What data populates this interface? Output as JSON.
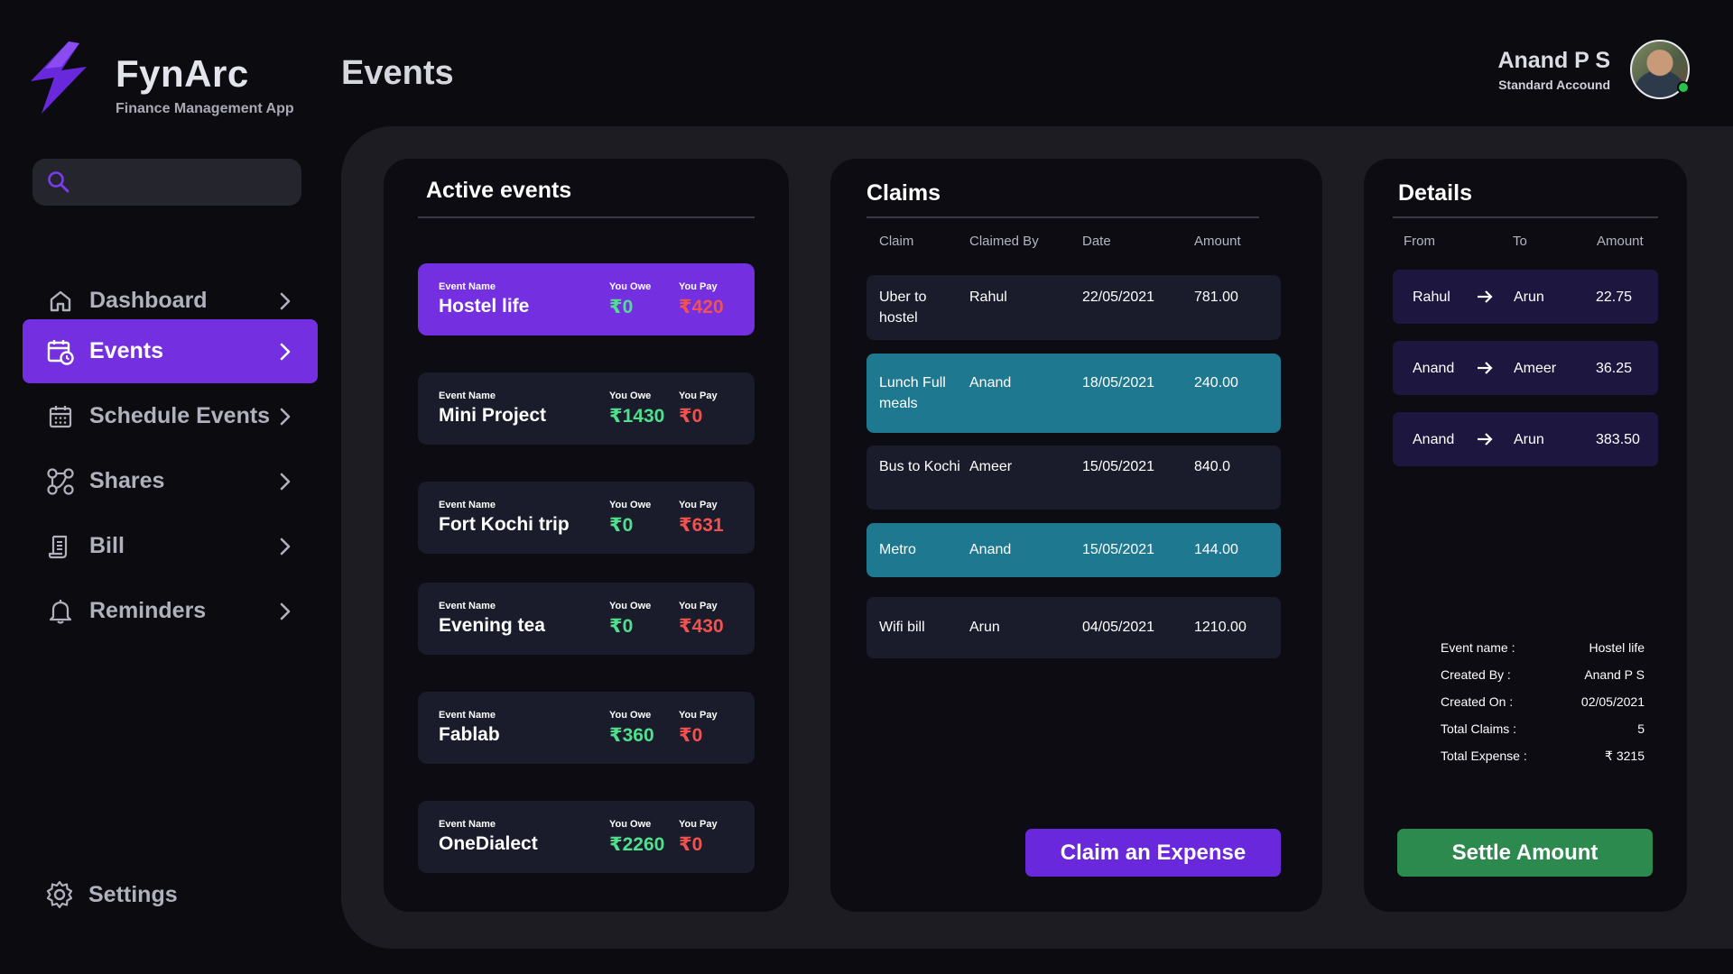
{
  "brand": {
    "name": "FynArc",
    "subtitle": "Finance Management App"
  },
  "header": {
    "title": "Events"
  },
  "user": {
    "name": "Anand P S",
    "role": "Standard Accound"
  },
  "search": {
    "placeholder": ""
  },
  "sidebar": {
    "items": [
      {
        "label": "Dashboard",
        "icon": "home-icon"
      },
      {
        "label": "Events",
        "icon": "calendar-clock-icon",
        "active": true
      },
      {
        "label": "Schedule Events",
        "icon": "calendar-icon"
      },
      {
        "label": "Shares",
        "icon": "share-nodes-icon"
      },
      {
        "label": "Bill",
        "icon": "receipt-icon"
      },
      {
        "label": "Reminders",
        "icon": "bell-icon"
      }
    ],
    "settings_label": "Settings"
  },
  "events_panel": {
    "title": "Active events",
    "col_name": "Event Name",
    "col_owe": "You Owe",
    "col_pay": "You Pay",
    "events": [
      {
        "name": "Hostel life",
        "owe": "₹0",
        "pay": "₹420"
      },
      {
        "name": "Mini Project",
        "owe": "₹1430",
        "pay": "₹0"
      },
      {
        "name": "Fort Kochi trip",
        "owe": "₹0",
        "pay": "₹631"
      },
      {
        "name": "Evening tea",
        "owe": "₹0",
        "pay": "₹430"
      },
      {
        "name": "Fablab",
        "owe": "₹360",
        "pay": "₹0"
      },
      {
        "name": "OneDialect",
        "owe": "₹2260",
        "pay": "₹0"
      }
    ]
  },
  "claims_panel": {
    "title": "Claims",
    "headers": {
      "claim": "Claim",
      "by": "Claimed By",
      "date": "Date",
      "amount": "Amount"
    },
    "rows": [
      {
        "claim": "Uber to hostel",
        "by": "Rahul",
        "date": "22/05/2021",
        "amount": "781.00"
      },
      {
        "claim": "Lunch Full meals",
        "by": "Anand",
        "date": "18/05/2021",
        "amount": "240.00"
      },
      {
        "claim": "Bus to Kochi",
        "by": "Ameer",
        "date": "15/05/2021",
        "amount": "840.0"
      },
      {
        "claim": "Metro",
        "by": "Anand",
        "date": "15/05/2021",
        "amount": "144.00"
      },
      {
        "claim": "Wifi bill",
        "by": "Arun",
        "date": "04/05/2021",
        "amount": "1210.00"
      }
    ],
    "button_label": "Claim an Expense"
  },
  "details_panel": {
    "title": "Details",
    "headers": {
      "from": "From",
      "to": "To",
      "amount": "Amount"
    },
    "rows": [
      {
        "from": "Rahul",
        "to": "Arun",
        "amount": "22.75"
      },
      {
        "from": "Anand",
        "to": "Ameer",
        "amount": "36.25"
      },
      {
        "from": "Anand",
        "to": "Arun",
        "amount": "383.50"
      }
    ],
    "info": [
      {
        "label": "Event name :",
        "value": "Hostel life"
      },
      {
        "label": "Created By :",
        "value": "Anand P S"
      },
      {
        "label": "Created On :",
        "value": "02/05/2021"
      },
      {
        "label": "Total Claims :",
        "value": "5"
      },
      {
        "label": "Total Expense :",
        "value": "₹ 3215"
      }
    ],
    "button_label": "Settle Amount"
  },
  "colors": {
    "accent": "#7430e0",
    "background": "#0b0b10",
    "panel": "#1c1c22",
    "card": "#0c0c12",
    "row": "#1a1c2c",
    "highlight_row": "#1e7890",
    "owe_green": "#4ee08c",
    "pay_red": "#f0534f",
    "settle_green": "#2d8a4f"
  }
}
